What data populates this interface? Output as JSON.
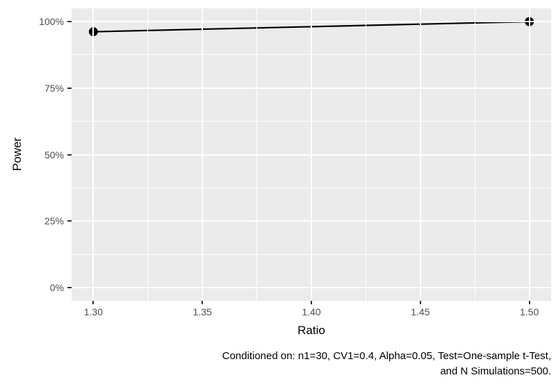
{
  "chart_data": {
    "type": "line",
    "title": "",
    "xlabel": "Ratio",
    "ylabel": "Power",
    "series": [
      {
        "name": "Power",
        "x": [
          1.3,
          1.5
        ],
        "y_percent": [
          96.2,
          100
        ]
      }
    ],
    "x_ticks": [
      1.3,
      1.35,
      1.4,
      1.45,
      1.5
    ],
    "x_tick_labels": [
      "1.30",
      "1.35",
      "1.40",
      "1.45",
      "1.50"
    ],
    "y_ticks_percent": [
      0,
      25,
      50,
      75,
      100
    ],
    "y_tick_labels": [
      "0%",
      "25%",
      "50%",
      "75%",
      "100%"
    ],
    "xlim": [
      1.29,
      1.51
    ],
    "ylim_percent": [
      -5,
      105
    ],
    "grid": true,
    "legend": "none",
    "caption_line1": "Conditioned on: n1=30, CV1=0.4, Alpha=0.05, Test=One-sample t-Test,",
    "caption_line2": "and N Simulations=500.",
    "colors": {
      "page_bg": "#FFFFFF",
      "panel_bg": "#EBEBEB",
      "grid": "#FFFFFF",
      "tick_mark": "#333333",
      "tick_text": "#4D4D4D",
      "axis_title": "#000000",
      "line": "#000000",
      "point": "#000000"
    }
  }
}
